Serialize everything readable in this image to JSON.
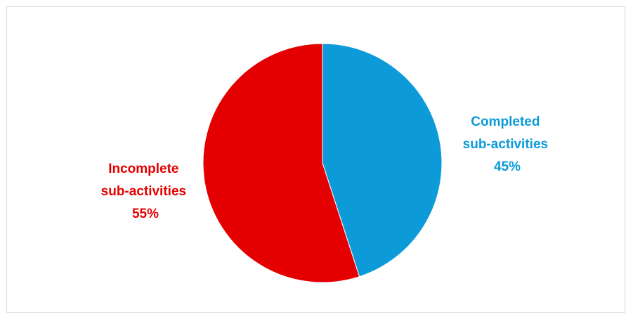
{
  "chart_data": {
    "type": "pie",
    "title": "",
    "slices": [
      {
        "name": "Completed sub-activities",
        "label_lines": [
          "Completed",
          "sub-activities"
        ],
        "value": 45,
        "value_label": "45%",
        "color": "#0c9bd8"
      },
      {
        "name": "Incomplete sub-activities",
        "label_lines": [
          "Incomplete",
          "sub-activities"
        ],
        "value": 55,
        "value_label": "55%",
        "color": "#e40000"
      }
    ],
    "start_angle": "12 o'clock",
    "direction": "clockwise",
    "legend": "none"
  }
}
